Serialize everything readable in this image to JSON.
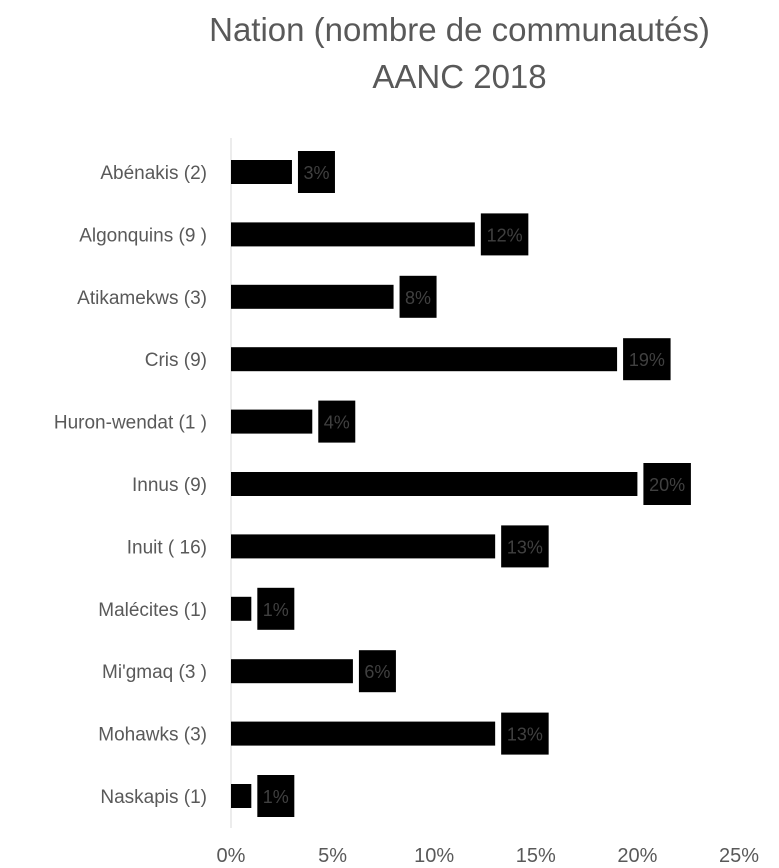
{
  "chart_data": {
    "type": "bar",
    "orientation": "horizontal",
    "title_lines": [
      "Nation (nombre de communautés)",
      "AANC 2018"
    ],
    "categories": [
      "Abénakis (2)",
      "Algonquins (9 )",
      "Atikamekws (3)",
      "Cris (9)",
      "Huron-wendat (1 )",
      "Innus (9)",
      "Inuit ( 16)",
      "Malécites (1)",
      "Mi'gmaq (3 )",
      "Mohawks (3)",
      "Naskapis (1)"
    ],
    "values": [
      3,
      12,
      8,
      19,
      4,
      20,
      13,
      1,
      6,
      13,
      1
    ],
    "data_labels": [
      "3%",
      "12%",
      "8%",
      "19%",
      "4%",
      "20%",
      "13%",
      "1%",
      "6%",
      "13%",
      "1%"
    ],
    "xlim": [
      0,
      25
    ],
    "xticks": [
      0,
      5,
      10,
      15,
      20,
      25
    ],
    "xtick_labels": [
      "0%",
      "5%",
      "10%",
      "15%",
      "20%",
      "25%"
    ],
    "grid": false,
    "legend": "none",
    "colors": {
      "bar": "#000000",
      "label_box": "#000000",
      "label_text": "#404040",
      "axis_text": "#595959",
      "axis_line": "#d9d9d9"
    }
  }
}
